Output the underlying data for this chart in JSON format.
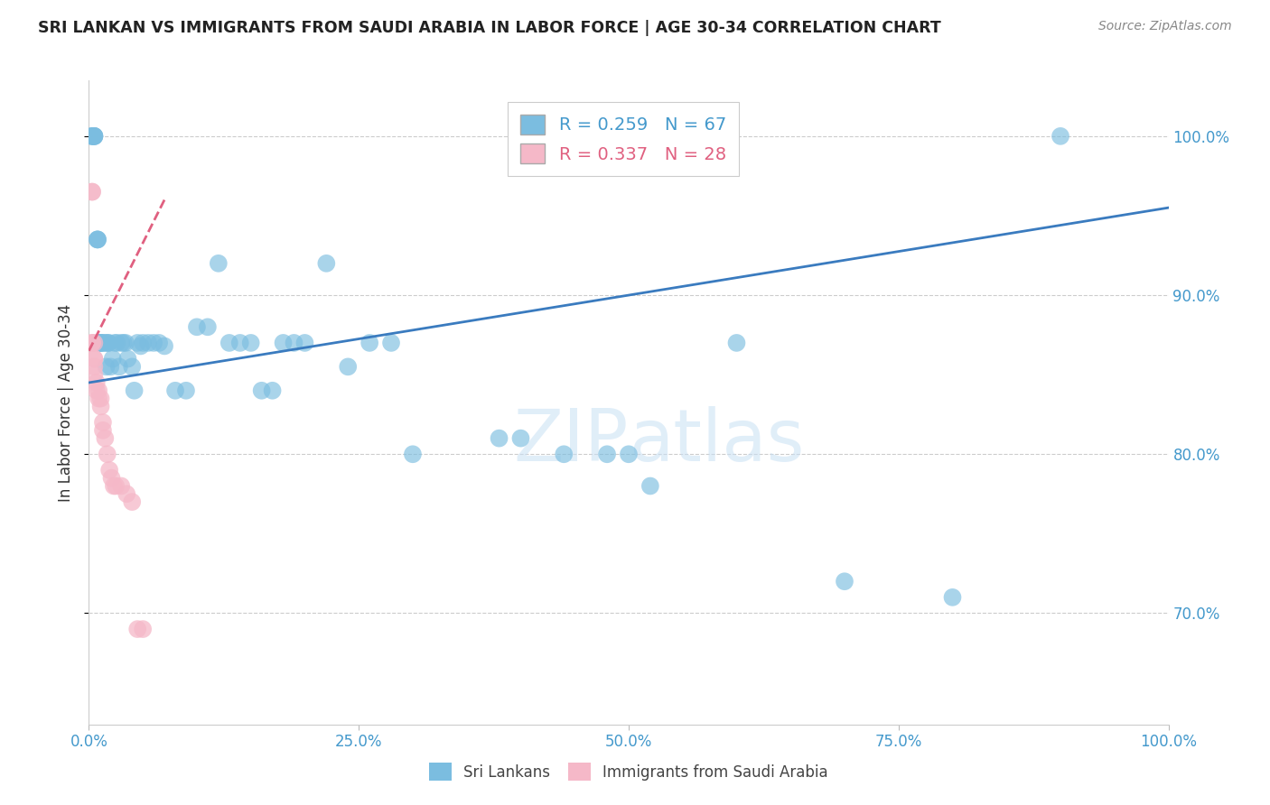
{
  "title": "SRI LANKAN VS IMMIGRANTS FROM SAUDI ARABIA IN LABOR FORCE | AGE 30-34 CORRELATION CHART",
  "source": "Source: ZipAtlas.com",
  "ylabel": "In Labor Force | Age 30-34",
  "xmin": 0.0,
  "xmax": 1.0,
  "ymin": 0.63,
  "ymax": 1.035,
  "yticks": [
    0.7,
    0.8,
    0.9,
    1.0
  ],
  "xticks": [
    0.0,
    0.25,
    0.5,
    0.75,
    1.0
  ],
  "xtick_labels": [
    "0.0%",
    "25.0%",
    "50.0%",
    "75.0%",
    "100.0%"
  ],
  "ytick_labels": [
    "70.0%",
    "80.0%",
    "90.0%",
    "100.0%"
  ],
  "blue_R": 0.259,
  "blue_N": 67,
  "pink_R": 0.337,
  "pink_N": 28,
  "blue_color": "#7bbde0",
  "pink_color": "#f5b8c8",
  "blue_line_color": "#3a7bbf",
  "pink_line_color": "#e06080",
  "grid_color": "#cccccc",
  "axis_color": "#4499cc",
  "blue_line_x0": 0.0,
  "blue_line_y0": 0.845,
  "blue_line_x1": 1.0,
  "blue_line_y1": 0.955,
  "pink_line_x0": 0.0,
  "pink_line_y0": 0.865,
  "pink_line_x1": 0.07,
  "pink_line_y1": 0.96,
  "blue_scatter_x": [
    0.003,
    0.003,
    0.003,
    0.005,
    0.005,
    0.005,
    0.005,
    0.008,
    0.008,
    0.008,
    0.01,
    0.01,
    0.01,
    0.012,
    0.012,
    0.014,
    0.016,
    0.016,
    0.018,
    0.018,
    0.02,
    0.022,
    0.024,
    0.026,
    0.028,
    0.03,
    0.032,
    0.034,
    0.036,
    0.04,
    0.042,
    0.045,
    0.048,
    0.05,
    0.055,
    0.06,
    0.065,
    0.07,
    0.08,
    0.09,
    0.1,
    0.11,
    0.12,
    0.13,
    0.14,
    0.15,
    0.16,
    0.17,
    0.18,
    0.19,
    0.2,
    0.22,
    0.24,
    0.26,
    0.28,
    0.3,
    0.38,
    0.4,
    0.44,
    0.48,
    0.5,
    0.52,
    0.6,
    0.7,
    0.8,
    0.9
  ],
  "blue_scatter_y": [
    1.0,
    1.0,
    1.0,
    1.0,
    1.0,
    1.0,
    1.0,
    0.935,
    0.935,
    0.935,
    0.87,
    0.87,
    0.87,
    0.87,
    0.87,
    0.87,
    0.87,
    0.855,
    0.87,
    0.87,
    0.855,
    0.86,
    0.87,
    0.87,
    0.855,
    0.87,
    0.87,
    0.87,
    0.86,
    0.855,
    0.84,
    0.87,
    0.868,
    0.87,
    0.87,
    0.87,
    0.87,
    0.868,
    0.84,
    0.84,
    0.88,
    0.88,
    0.92,
    0.87,
    0.87,
    0.87,
    0.84,
    0.84,
    0.87,
    0.87,
    0.87,
    0.92,
    0.855,
    0.87,
    0.87,
    0.8,
    0.81,
    0.81,
    0.8,
    0.8,
    0.8,
    0.78,
    0.87,
    0.72,
    0.71,
    1.0
  ],
  "pink_scatter_x": [
    0.003,
    0.003,
    0.003,
    0.003,
    0.005,
    0.005,
    0.005,
    0.005,
    0.005,
    0.007,
    0.007,
    0.009,
    0.009,
    0.011,
    0.011,
    0.013,
    0.013,
    0.015,
    0.017,
    0.019,
    0.021,
    0.023,
    0.025,
    0.03,
    0.035,
    0.04,
    0.045,
    0.05
  ],
  "pink_scatter_y": [
    0.965,
    0.965,
    0.87,
    0.87,
    0.87,
    0.86,
    0.86,
    0.855,
    0.85,
    0.845,
    0.84,
    0.84,
    0.835,
    0.835,
    0.83,
    0.82,
    0.815,
    0.81,
    0.8,
    0.79,
    0.785,
    0.78,
    0.78,
    0.78,
    0.775,
    0.77,
    0.69,
    0.69
  ]
}
